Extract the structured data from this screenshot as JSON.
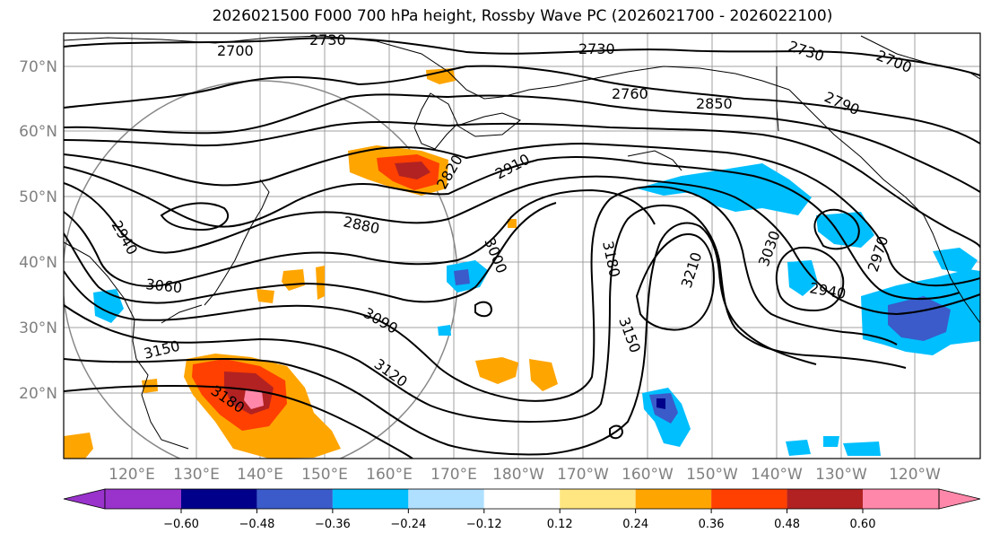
{
  "title": "2026021500 F000 700 hPa height, Rossby Wave PC (2026021700 - 2026022100)",
  "lat_labels": [
    "70°N",
    "60°N",
    "50°N",
    "40°N",
    "30°N",
    "20°N"
  ],
  "lon_labels": [
    "120°E",
    "130°E",
    "140°E",
    "150°E",
    "160°E",
    "170°E",
    "180°W",
    "170°W",
    "160°W",
    "150°W",
    "140°W",
    "130°W",
    "120°W"
  ],
  "colorbar": {
    "colors": [
      "#9933cc",
      "#00008b",
      "#3a5bc9",
      "#00bfff",
      "#b0e0ff",
      "#ffffff",
      "#ffe680",
      "#ffa500",
      "#ff4000",
      "#b22222",
      "#ff88aa"
    ],
    "tick_labels": [
      "−0.60",
      "−0.48",
      "−0.36",
      "−0.24",
      "−0.12",
      "0.12",
      "0.24",
      "0.36",
      "0.48",
      "0.60"
    ]
  },
  "contour_labels": [
    "2700",
    "2730",
    "2730",
    "2730",
    "2700",
    "2790",
    "2850",
    "2760",
    "2820",
    "2910",
    "2880",
    "2940",
    "3000",
    "3060",
    "3090",
    "3120",
    "3150",
    "3180",
    "3180",
    "3150",
    "3210",
    "3030",
    "2940",
    "2970"
  ]
}
